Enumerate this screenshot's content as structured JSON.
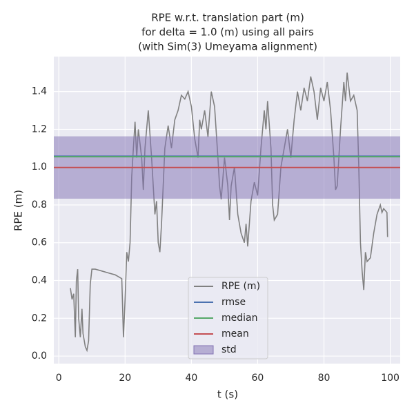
{
  "chart_data": {
    "type": "line",
    "title": [
      "RPE w.r.t. translation part (m)",
      "for delta = 1.0 (m) using all pairs",
      "(with Sim(3) Umeyama alignment)"
    ],
    "xlabel": "t (s)",
    "ylabel": "RPE (m)",
    "xlim": [
      -1.5,
      103
    ],
    "ylim": [
      -0.04,
      1.585
    ],
    "xticks": [
      0,
      20,
      40,
      60,
      80,
      100
    ],
    "yticks": [
      {
        "value": 0,
        "label": "0.0"
      },
      0.2,
      0.4,
      0.6,
      0.8,
      {
        "value": 1,
        "label": "1.0"
      },
      1.2,
      1.4
    ],
    "grid": true,
    "legend": "lower center",
    "x": [
      3.5,
      4,
      4.5,
      5,
      5.3,
      5.7,
      6,
      6.5,
      7,
      7.3,
      8,
      8.5,
      9,
      9.5,
      10,
      11,
      13,
      15,
      17,
      19,
      19.5,
      20,
      20.5,
      21,
      21.5,
      22,
      22.5,
      23,
      23.5,
      24,
      25,
      25.5,
      26,
      27,
      28,
      29,
      29.5,
      30,
      30.5,
      31,
      32,
      33,
      34,
      35,
      36,
      37,
      38,
      39,
      40,
      41,
      42,
      42.5,
      43,
      44,
      45,
      46,
      47,
      48,
      48.5,
      49,
      50,
      51,
      51.5,
      52,
      53,
      54,
      55,
      56,
      56.5,
      57,
      58,
      59,
      60,
      61,
      62,
      62.5,
      63,
      64,
      64.5,
      65,
      66,
      67,
      68,
      69,
      70,
      71,
      72,
      73,
      74,
      75,
      76,
      77,
      78,
      79,
      80,
      81,
      82,
      83,
      83.5,
      84,
      85,
      86,
      86.5,
      87,
      88,
      89,
      90,
      90.5,
      91,
      91.5,
      92,
      92.5,
      93,
      94,
      95,
      96,
      97,
      97.5,
      98,
      99,
      99.2
    ],
    "series": [
      {
        "name": "RPE (m)",
        "color": "#808080",
        "values": [
          0.36,
          0.3,
          0.33,
          0.1,
          0.4,
          0.46,
          0.2,
          0.1,
          0.25,
          0.12,
          0.05,
          0.03,
          0.08,
          0.38,
          0.46,
          0.46,
          0.45,
          0.44,
          0.43,
          0.41,
          0.1,
          0.3,
          0.55,
          0.5,
          0.6,
          0.95,
          1.1,
          1.24,
          1.05,
          1.2,
          1.05,
          0.88,
          1.1,
          1.3,
          1.05,
          0.75,
          0.82,
          0.6,
          0.55,
          0.7,
          1.1,
          1.22,
          1.1,
          1.25,
          1.3,
          1.38,
          1.36,
          1.4,
          1.32,
          1.15,
          1.05,
          1.25,
          1.2,
          1.3,
          1.16,
          1.4,
          1.32,
          1.05,
          0.9,
          0.83,
          1.05,
          0.9,
          0.72,
          0.9,
          1.0,
          0.75,
          0.65,
          0.6,
          0.7,
          0.58,
          0.82,
          0.92,
          0.85,
          1.1,
          1.3,
          1.2,
          1.35,
          1.1,
          0.8,
          0.72,
          0.75,
          1.0,
          1.1,
          1.2,
          1.05,
          1.25,
          1.4,
          1.3,
          1.42,
          1.35,
          1.48,
          1.4,
          1.25,
          1.42,
          1.35,
          1.45,
          1.3,
          1.05,
          0.88,
          0.9,
          1.2,
          1.45,
          1.35,
          1.5,
          1.35,
          1.38,
          1.3,
          1.0,
          0.6,
          0.45,
          0.35,
          0.55,
          0.5,
          0.52,
          0.65,
          0.75,
          0.8,
          0.76,
          0.78,
          0.76,
          0.63
        ]
      }
    ],
    "stats": [
      {
        "name": "rmse",
        "color": "#4c72b0",
        "value": 1.058
      },
      {
        "name": "median",
        "color": "#55a868",
        "value": 1.055
      },
      {
        "name": "mean",
        "color": "#c44e52",
        "value": 0.998
      }
    ],
    "std": {
      "name": "std",
      "color": "#8172b3",
      "value": 0.165
    }
  }
}
